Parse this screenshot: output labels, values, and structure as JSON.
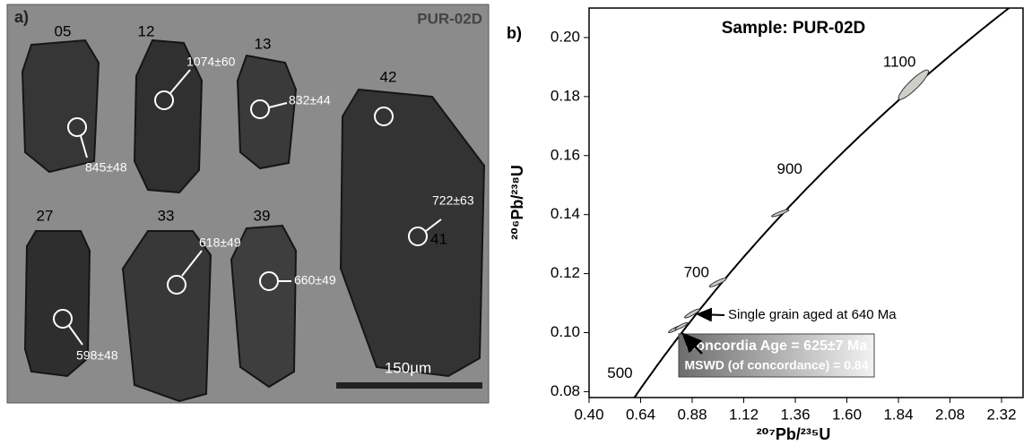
{
  "image_panel": {
    "label": "a)",
    "sample": "PUR-02D",
    "scale": "150µm",
    "grains": [
      {
        "id": "05",
        "age": "845±48"
      },
      {
        "id": "12",
        "age": "1074±60"
      },
      {
        "id": "13",
        "age": "832±44"
      },
      {
        "id": "42"
      },
      {
        "id": "41",
        "age": "722±63"
      },
      {
        "id": "27",
        "age": "598±48"
      },
      {
        "id": "33",
        "age": "618±49"
      },
      {
        "id": "39",
        "age": "660±49"
      }
    ]
  },
  "chart_data": {
    "type": "scatter",
    "panel_label": "b)",
    "title": "Sample: PUR-02D",
    "x_label": "²⁰⁷Pb/²³⁵U",
    "y_label": "²⁰⁶Pb/²³⁸U",
    "annotations": [
      "Single grain aged at 640 Ma",
      "Concordia Age = 625±7 Ma",
      "MSWD (of concordance) = 0.84"
    ],
    "curve_labels": [
      500,
      700,
      900,
      1100
    ],
    "color": "#cfcfca",
    "series": [
      {
        "x": [
          1.91,
          1.29,
          1.0,
          0.88,
          0.8,
          0.83
        ],
        "values": [
          0.184,
          0.1405,
          0.117,
          0.1065,
          0.1012,
          0.1022
        ],
        "xerr": [
          0.07,
          0.04,
          0.04,
          0.035,
          0.03,
          0.03
        ],
        "yerr": [
          0.005,
          0.0012,
          0.0015,
          0.0015,
          0.0012,
          0.0012
        ]
      }
    ],
    "xlim": [
      0.4,
      2.42
    ],
    "ylim": [
      0.078,
      0.21
    ],
    "xticks": [
      {
        "value": 0.4,
        "label": "0.40"
      },
      {
        "value": 0.64,
        "label": "0.64"
      },
      {
        "value": 0.88,
        "label": "0.88"
      },
      {
        "value": 1.12,
        "label": "1.12"
      },
      {
        "value": 1.36,
        "label": "1.36"
      },
      {
        "value": 1.6,
        "label": "1.60"
      },
      {
        "value": 1.84,
        "label": "1.84"
      },
      {
        "value": 2.08,
        "label": "2.08"
      },
      {
        "value": 2.32,
        "label": "2.32"
      }
    ],
    "yticks": [
      {
        "value": 0.08,
        "label": "0.08"
      },
      {
        "value": 0.1,
        "label": "0.10"
      },
      {
        "value": 0.12,
        "label": "0.12"
      },
      {
        "value": 0.14,
        "label": "0.14"
      },
      {
        "value": 0.16,
        "label": "0.16"
      },
      {
        "value": 0.18,
        "label": "0.18"
      },
      {
        "value": 0.2,
        "label": "0.20"
      }
    ]
  }
}
